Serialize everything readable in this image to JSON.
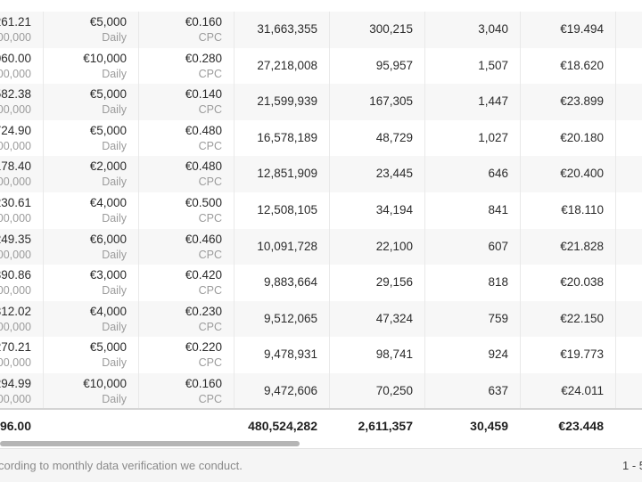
{
  "rows": [
    {
      "spend": "261.21",
      "budget_cap": "00,000",
      "budget": "€5,000",
      "budget_type": "Daily",
      "bid": "€0.160",
      "bid_type": "CPC",
      "impressions": "31,663,355",
      "clicks": "300,215",
      "conversions": "3,040",
      "cpa": "€19.494"
    },
    {
      "spend": "060.00",
      "budget_cap": "00,000",
      "budget": "€10,000",
      "budget_type": "Daily",
      "bid": "€0.280",
      "bid_type": "CPC",
      "impressions": "27,218,008",
      "clicks": "95,957",
      "conversions": "1,507",
      "cpa": "€18.620"
    },
    {
      "spend": "582.38",
      "budget_cap": "00,000",
      "budget": "€5,000",
      "budget_type": "Daily",
      "bid": "€0.140",
      "bid_type": "CPC",
      "impressions": "21,599,939",
      "clicks": "167,305",
      "conversions": "1,447",
      "cpa": "€23.899"
    },
    {
      "spend": "724.90",
      "budget_cap": "00,000",
      "budget": "€5,000",
      "budget_type": "Daily",
      "bid": "€0.480",
      "bid_type": "CPC",
      "impressions": "16,578,189",
      "clicks": "48,729",
      "conversions": "1,027",
      "cpa": "€20.180"
    },
    {
      "spend": "178.40",
      "budget_cap": "00,000",
      "budget": "€2,000",
      "budget_type": "Daily",
      "bid": "€0.480",
      "bid_type": "CPC",
      "impressions": "12,851,909",
      "clicks": "23,445",
      "conversions": "646",
      "cpa": "€20.400"
    },
    {
      "spend": "230.61",
      "budget_cap": "00,000",
      "budget": "€4,000",
      "budget_type": "Daily",
      "bid": "€0.500",
      "bid_type": "CPC",
      "impressions": "12,508,105",
      "clicks": "34,194",
      "conversions": "841",
      "cpa": "€18.110"
    },
    {
      "spend": "249.35",
      "budget_cap": "00,000",
      "budget": "€6,000",
      "budget_type": "Daily",
      "bid": "€0.460",
      "bid_type": "CPC",
      "impressions": "10,091,728",
      "clicks": "22,100",
      "conversions": "607",
      "cpa": "€21.828"
    },
    {
      "spend": "390.86",
      "budget_cap": "00,000",
      "budget": "€3,000",
      "budget_type": "Daily",
      "bid": "€0.420",
      "bid_type": "CPC",
      "impressions": "9,883,664",
      "clicks": "29,156",
      "conversions": "818",
      "cpa": "€20.038"
    },
    {
      "spend": "312.02",
      "budget_cap": "00,000",
      "budget": "€4,000",
      "budget_type": "Daily",
      "bid": "€0.230",
      "bid_type": "CPC",
      "impressions": "9,512,065",
      "clicks": "47,324",
      "conversions": "759",
      "cpa": "€22.150"
    },
    {
      "spend": "270.21",
      "budget_cap": "00,000",
      "budget": "€5,000",
      "budget_type": "Daily",
      "bid": "€0.220",
      "bid_type": "CPC",
      "impressions": "9,478,931",
      "clicks": "98,741",
      "conversions": "924",
      "cpa": "€19.773"
    },
    {
      "spend": "294.99",
      "budget_cap": "00,000",
      "budget": "€10,000",
      "budget_type": "Daily",
      "bid": "€0.160",
      "bid_type": "CPC",
      "impressions": "9,472,606",
      "clicks": "70,250",
      "conversions": "637",
      "cpa": "€24.011"
    }
  ],
  "totals": {
    "spend": "96.00",
    "impressions": "480,524,282",
    "clicks": "2,611,357",
    "conversions": "30,459",
    "cpa": "€23.448"
  },
  "footer": {
    "note": "cording to monthly data verification we conduct.",
    "pagination": "1 - 5"
  },
  "colors": {
    "stripe": "#f7f7f7",
    "divider": "#e9e9e9",
    "muted_text": "#9b9b9b",
    "scroll_thumb": "#b5b5b5"
  }
}
